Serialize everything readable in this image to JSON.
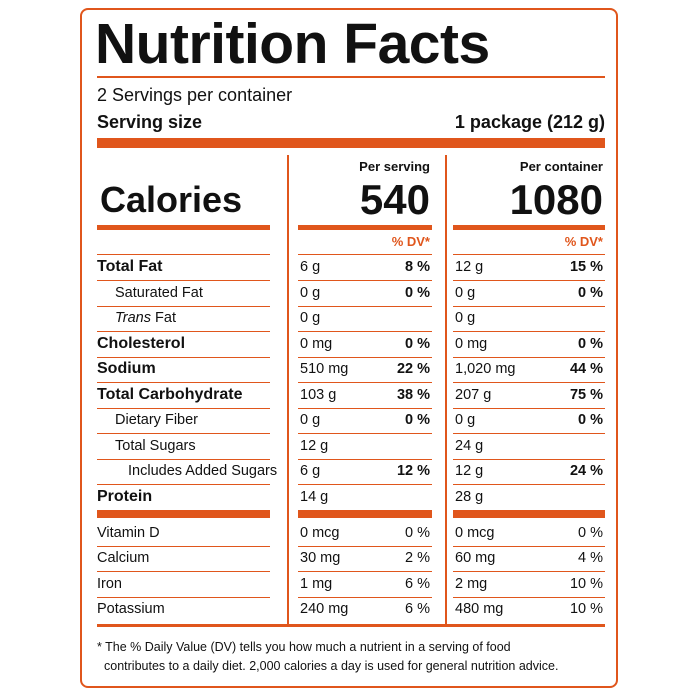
{
  "title": "Nutrition Facts",
  "servings": "2 Servings per container",
  "serving_size": {
    "label": "Serving size",
    "value": "1 package (212 g)"
  },
  "calories": {
    "label": "Calories"
  },
  "columns": [
    {
      "header": "Per serving",
      "calories": "540",
      "dv_header": "% DV*"
    },
    {
      "header": "Per container",
      "calories": "1080",
      "dv_header": "% DV*"
    }
  ],
  "nutrients": [
    {
      "label": "Total Fat",
      "bold": true,
      "indent": 0,
      "values": [
        {
          "amount": "6 g",
          "dv": "8 %"
        },
        {
          "amount": "12 g",
          "dv": "15 %"
        }
      ]
    },
    {
      "label": "Saturated Fat",
      "bold": false,
      "indent": 1,
      "values": [
        {
          "amount": "0 g",
          "dv": "0 %"
        },
        {
          "amount": "0 g",
          "dv": "0 %"
        }
      ]
    },
    {
      "label_italic": "Trans",
      "label": "Fat",
      "bold": false,
      "indent": 1,
      "values": [
        {
          "amount": "0 g"
        },
        {
          "amount": "0 g"
        }
      ]
    },
    {
      "label": "Cholesterol",
      "bold": true,
      "indent": 0,
      "values": [
        {
          "amount": "0 mg",
          "dv": "0 %"
        },
        {
          "amount": "0 mg",
          "dv": "0 %"
        }
      ]
    },
    {
      "label": "Sodium",
      "bold": true,
      "indent": 0,
      "values": [
        {
          "amount": "510 mg",
          "dv": "22 %"
        },
        {
          "amount": "1,020 mg",
          "dv": "44 %"
        }
      ]
    },
    {
      "label": "Total Carbohydrate",
      "bold": true,
      "indent": 0,
      "values": [
        {
          "amount": "103 g",
          "dv": "38 %"
        },
        {
          "amount": "207 g",
          "dv": "75 %"
        }
      ]
    },
    {
      "label": "Dietary Fiber",
      "bold": false,
      "indent": 1,
      "values": [
        {
          "amount": "0 g",
          "dv": "0 %"
        },
        {
          "amount": "0 g",
          "dv": "0 %"
        }
      ]
    },
    {
      "label": "Total Sugars",
      "bold": false,
      "indent": 1,
      "values": [
        {
          "amount": "12 g"
        },
        {
          "amount": "24 g"
        }
      ]
    },
    {
      "label": "Includes Added Sugars",
      "bold": false,
      "indent": 2,
      "values": [
        {
          "amount": "6 g",
          "dv": "12 %"
        },
        {
          "amount": "12 g",
          "dv": "24 %"
        }
      ]
    },
    {
      "label": "Protein",
      "bold": true,
      "indent": 0,
      "values": [
        {
          "amount": "14 g"
        },
        {
          "amount": "28 g"
        }
      ]
    }
  ],
  "minerals": [
    {
      "label": "Vitamin D",
      "values": [
        {
          "amount": "0 mcg",
          "dv": "0 %"
        },
        {
          "amount": "0 mcg",
          "dv": "0 %"
        }
      ]
    },
    {
      "label": "Calcium",
      "values": [
        {
          "amount": "30 mg",
          "dv": "2 %"
        },
        {
          "amount": "60 mg",
          "dv": "4 %"
        }
      ]
    },
    {
      "label": "Iron",
      "values": [
        {
          "amount": "1 mg",
          "dv": "6 %"
        },
        {
          "amount": "2 mg",
          "dv": "10 %"
        }
      ]
    },
    {
      "label": "Potassium",
      "values": [
        {
          "amount": "240 mg",
          "dv": "6 %"
        },
        {
          "amount": "480 mg",
          "dv": "10 %"
        }
      ]
    }
  ],
  "footnote": [
    "* The % Daily Value (DV) tells you how much a nutrient in a serving of food",
    "contributes to a daily diet. 2,000 calories a day is used for general nutrition advice."
  ]
}
